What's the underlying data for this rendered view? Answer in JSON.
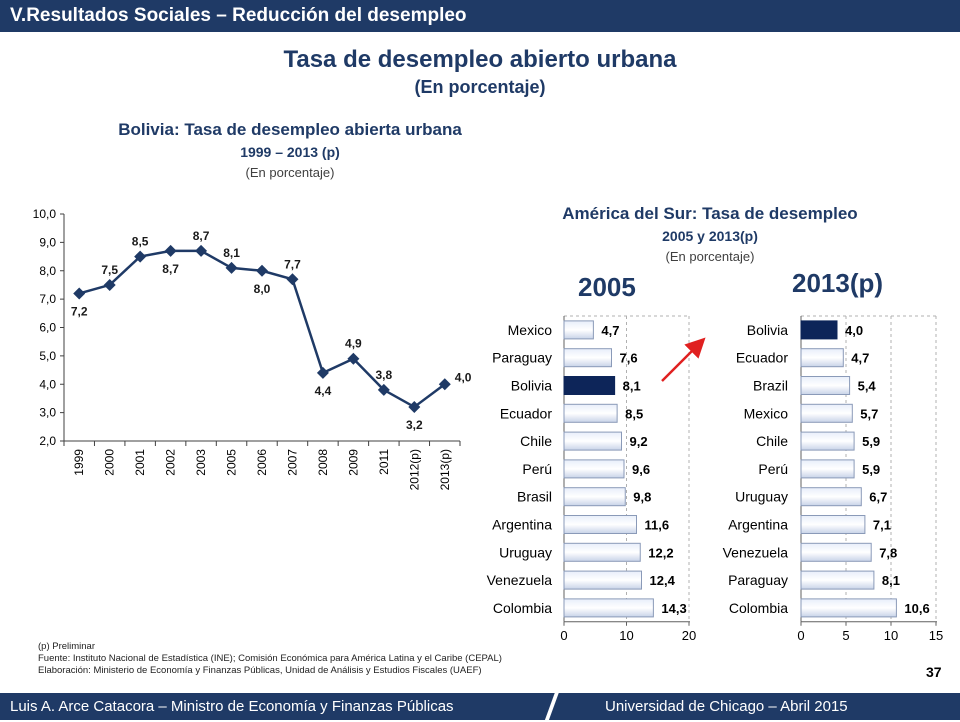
{
  "header": {
    "title": "V.Resultados Sociales – Reducción del desempleo"
  },
  "main": {
    "title": "Tasa de desempleo abierto urbana",
    "subtitle": "(En porcentaje)"
  },
  "line_chart": {
    "title": "Bolivia: Tasa de desempleo abierta urbana",
    "subtitle": "1999 – 2013 (p)",
    "unit": "(En porcentaje)"
  },
  "bar_section": {
    "title": "América del Sur: Tasa de desempleo",
    "subtitle": "2005 y 2013(p)",
    "unit": "(En porcentaje)",
    "left_year": "2005",
    "right_year": "2013(p)"
  },
  "chart_data": [
    {
      "type": "line",
      "categories": [
        "1999",
        "2000",
        "2001",
        "2002",
        "2003",
        "2005",
        "2006",
        "2007",
        "2008",
        "2009",
        "2011",
        "2012(p)",
        "2013(p)"
      ],
      "values": [
        7.2,
        7.5,
        8.5,
        8.7,
        8.7,
        8.1,
        8.0,
        7.7,
        4.4,
        4.9,
        3.8,
        3.2,
        4.0
      ],
      "value_labels": [
        "7,2",
        "7,5",
        "8,5",
        "8,7",
        "8,7",
        "8,1",
        "8,0",
        "7,7",
        "4,4",
        "4,9",
        "3,8",
        "3,2",
        "4,0"
      ],
      "ylim": [
        2.0,
        10.0
      ],
      "yticks": [
        "2,0",
        "3,0",
        "4,0",
        "5,0",
        "6,0",
        "7,0",
        "8,0",
        "9,0",
        "10,0"
      ],
      "color": "#1f3a66"
    },
    {
      "type": "bar",
      "orientation": "horizontal",
      "categories": [
        "Mexico",
        "Paraguay",
        "Bolivia",
        "Ecuador",
        "Chile",
        "Perú",
        "Brasil",
        "Argentina",
        "Uruguay",
        "Venezuela",
        "Colombia"
      ],
      "values": [
        4.7,
        7.6,
        8.1,
        8.5,
        9.2,
        9.6,
        9.8,
        11.6,
        12.2,
        12.4,
        14.3
      ],
      "value_labels": [
        "4,7",
        "7,6",
        "8,1",
        "8,5",
        "9,2",
        "9,6",
        "9,8",
        "11,6",
        "12,2",
        "12,4",
        "14,3"
      ],
      "highlight": "Bolivia",
      "xlim": [
        0,
        20
      ],
      "xticks": [
        "0",
        "10",
        "20"
      ]
    },
    {
      "type": "bar",
      "orientation": "horizontal",
      "categories": [
        "Bolivia",
        "Ecuador",
        "Brazil",
        "Mexico",
        "Chile",
        "Perú",
        "Uruguay",
        "Argentina",
        "Venezuela",
        "Paraguay",
        "Colombia"
      ],
      "values": [
        4.0,
        4.7,
        5.4,
        5.7,
        5.9,
        5.9,
        6.7,
        7.1,
        7.8,
        8.1,
        10.6
      ],
      "value_labels": [
        "4,0",
        "4,7",
        "5,4",
        "5,7",
        "5,9",
        "5,9",
        "6,7",
        "7,1",
        "7,8",
        "8,1",
        "10,6"
      ],
      "highlight": "Bolivia",
      "xlim": [
        0,
        15
      ],
      "xticks": [
        "0",
        "5",
        "10",
        "15"
      ]
    }
  ],
  "notes": {
    "line1": "(p) Preliminar",
    "line2": "Fuente: Instituto Nacional de Estadística (INE); Comisión Económica para América Latina y el Caribe (CEPAL)",
    "line3": "Elaboración: Ministerio de Economía y Finanzas Públicas, Unidad de Análisis y Estudios Fiscales (UAEF)"
  },
  "footer": {
    "left": "Luis A. Arce Catacora – Ministro de Economía y Finanzas Públicas",
    "right": "Universidad de Chicago – Abril 2015",
    "page": "37"
  },
  "colors": {
    "navy": "#1f3a66",
    "highlight": "#0d2559",
    "arrow": "#e02020"
  }
}
